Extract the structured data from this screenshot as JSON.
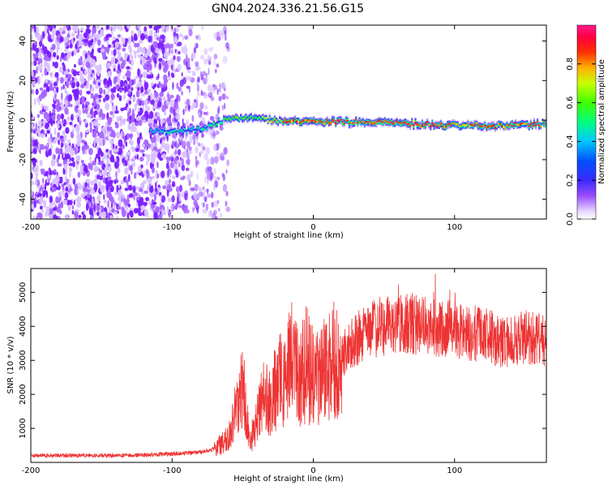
{
  "title": "GN04.2024.336.21.56.G15",
  "chart_data": [
    {
      "type": "heatmap",
      "xlabel": "Height of straight line (km)",
      "ylabel": "Frequency (Hz)",
      "xlim": [
        -200,
        165
      ],
      "ylim": [
        -50,
        48
      ],
      "xticks": [
        -200,
        -100,
        0,
        100
      ],
      "yticks": [
        -40,
        -20,
        0,
        20,
        40
      ],
      "colorbar": {
        "label": "Normalized spectral amplitude",
        "range": [
          0,
          1
        ],
        "ticks": [
          0.0,
          0.2,
          0.4,
          0.6,
          0.8
        ],
        "colors": [
          "#ffffff",
          "#e0c8ff",
          "#8c2cff",
          "#2a2aff",
          "#00c8ff",
          "#00ff60",
          "#c8ff00",
          "#ff6a00",
          "#ff0000",
          "#ff1a8c"
        ]
      },
      "noise_region": {
        "x_range": [
          -200,
          -70
        ],
        "freq_range": [
          -50,
          48
        ],
        "amplitude": "low-scattered"
      },
      "ridge": [
        {
          "x": -115,
          "freq": -5,
          "amp": 0.35
        },
        {
          "x": -100,
          "freq": -6,
          "amp": 0.4
        },
        {
          "x": -80,
          "freq": -5,
          "amp": 0.4
        },
        {
          "x": -60,
          "freq": 1,
          "amp": 0.5
        },
        {
          "x": -40,
          "freq": 1,
          "amp": 0.55
        },
        {
          "x": -20,
          "freq": -1,
          "amp": 0.75
        },
        {
          "x": 0,
          "freq": -1,
          "amp": 0.85
        },
        {
          "x": 40,
          "freq": -1,
          "amp": 0.85
        },
        {
          "x": 70,
          "freq": -2,
          "amp": 0.85
        },
        {
          "x": 100,
          "freq": -3,
          "amp": 0.8
        },
        {
          "x": 130,
          "freq": -3,
          "amp": 0.8
        },
        {
          "x": 165,
          "freq": -2,
          "amp": 0.75
        }
      ]
    },
    {
      "type": "line",
      "xlabel": "Height of straight line (km)",
      "ylabel": "SNR (10 * v/v)",
      "xlim": [
        -200,
        165
      ],
      "ylim": [
        0,
        5700
      ],
      "xticks": [
        -200,
        -100,
        0,
        100
      ],
      "yticks": [
        1000,
        2000,
        3000,
        4000,
        5000
      ],
      "color": "#ee3333",
      "series": [
        {
          "x": [
            -200,
            -180,
            -160,
            -140,
            -120,
            -100,
            -80,
            -70,
            -60,
            -55,
            -50,
            -45,
            -40,
            -35,
            -30,
            -25,
            -20,
            -15,
            -10,
            -5,
            0,
            10,
            20,
            30,
            40,
            60,
            80,
            100,
            110,
            120,
            130,
            140,
            150,
            165
          ],
          "y": [
            200,
            200,
            210,
            200,
            220,
            250,
            300,
            400,
            700,
            1500,
            2300,
            600,
            1200,
            2000,
            1600,
            2600,
            2200,
            3200,
            2400,
            2900,
            2500,
            2800,
            3200,
            3600,
            3900,
            4100,
            4000,
            3900,
            3800,
            3800,
            3600,
            3500,
            3700,
            3600
          ]
        }
      ]
    }
  ]
}
